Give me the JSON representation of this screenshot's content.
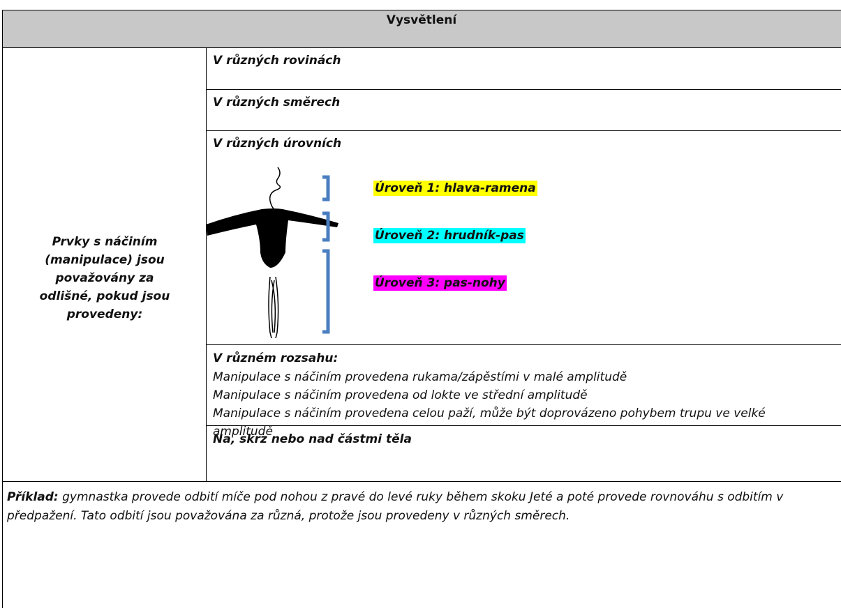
{
  "header": {
    "title": "Vysvětlení"
  },
  "left_cell": "Prvky s náčiním (manipulace) jsou považovány za odlišné, pokud jsou provedeny:",
  "items": [
    "V různých rovinách",
    "V různých směrech",
    "V různých úrovních"
  ],
  "levels": [
    {
      "label": "Úroveň 1: hlava-ramena",
      "color": "#ffff00"
    },
    {
      "label": "Úroveň 2: hrudník-pas",
      "color": "#00ffff"
    },
    {
      "label": "Úroveň 3: pas-nohy",
      "color": "#ff00ff"
    }
  ],
  "range": {
    "title": "V různém rozsahu:",
    "lines": [
      "Manipulace s náčiním provedena rukama/zápěstími v malé amplitudě",
      "Manipulace s náčiním provedena od lokte ve střední amplitudě",
      "Manipulace s náčiním provedena celou paží, může být doprovázeno pohybem trupu ve velké amplitudě"
    ]
  },
  "last_item": "Na, skrz nebo nad částmi těla",
  "example": {
    "label": "Příklad:",
    "text": "gymnastka provede odbití míče pod nohou z pravé do levé ruky během skoku Jeté a poté provede rovnováhu s odbitím v předpažení. Tato odbití jsou považována za různá, protože jsou provedeny v různých směrech."
  }
}
